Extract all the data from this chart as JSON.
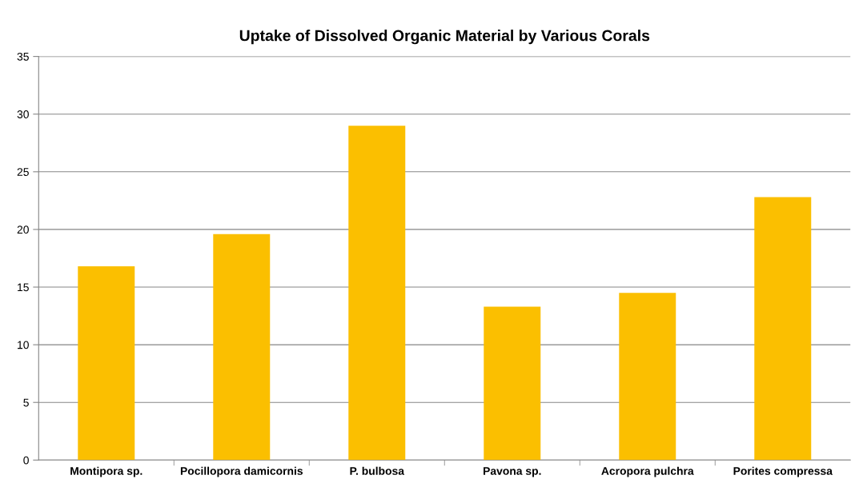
{
  "chart_data": {
    "type": "bar",
    "title": "Uptake of Dissolved Organic Material by Various Corals",
    "categories": [
      "Montipora sp.",
      "Pocillopora damicornis",
      "P. bulbosa",
      "Pavona sp.",
      "Acropora pulchra",
      "Porites compressa"
    ],
    "values": [
      16.8,
      19.6,
      29.0,
      13.3,
      14.5,
      22.8
    ],
    "color": "#fbbf00",
    "ylim": [
      0,
      35
    ],
    "yticks": [
      0,
      5,
      10,
      15,
      20,
      25,
      30,
      35
    ],
    "grid": "y",
    "legend": false
  }
}
